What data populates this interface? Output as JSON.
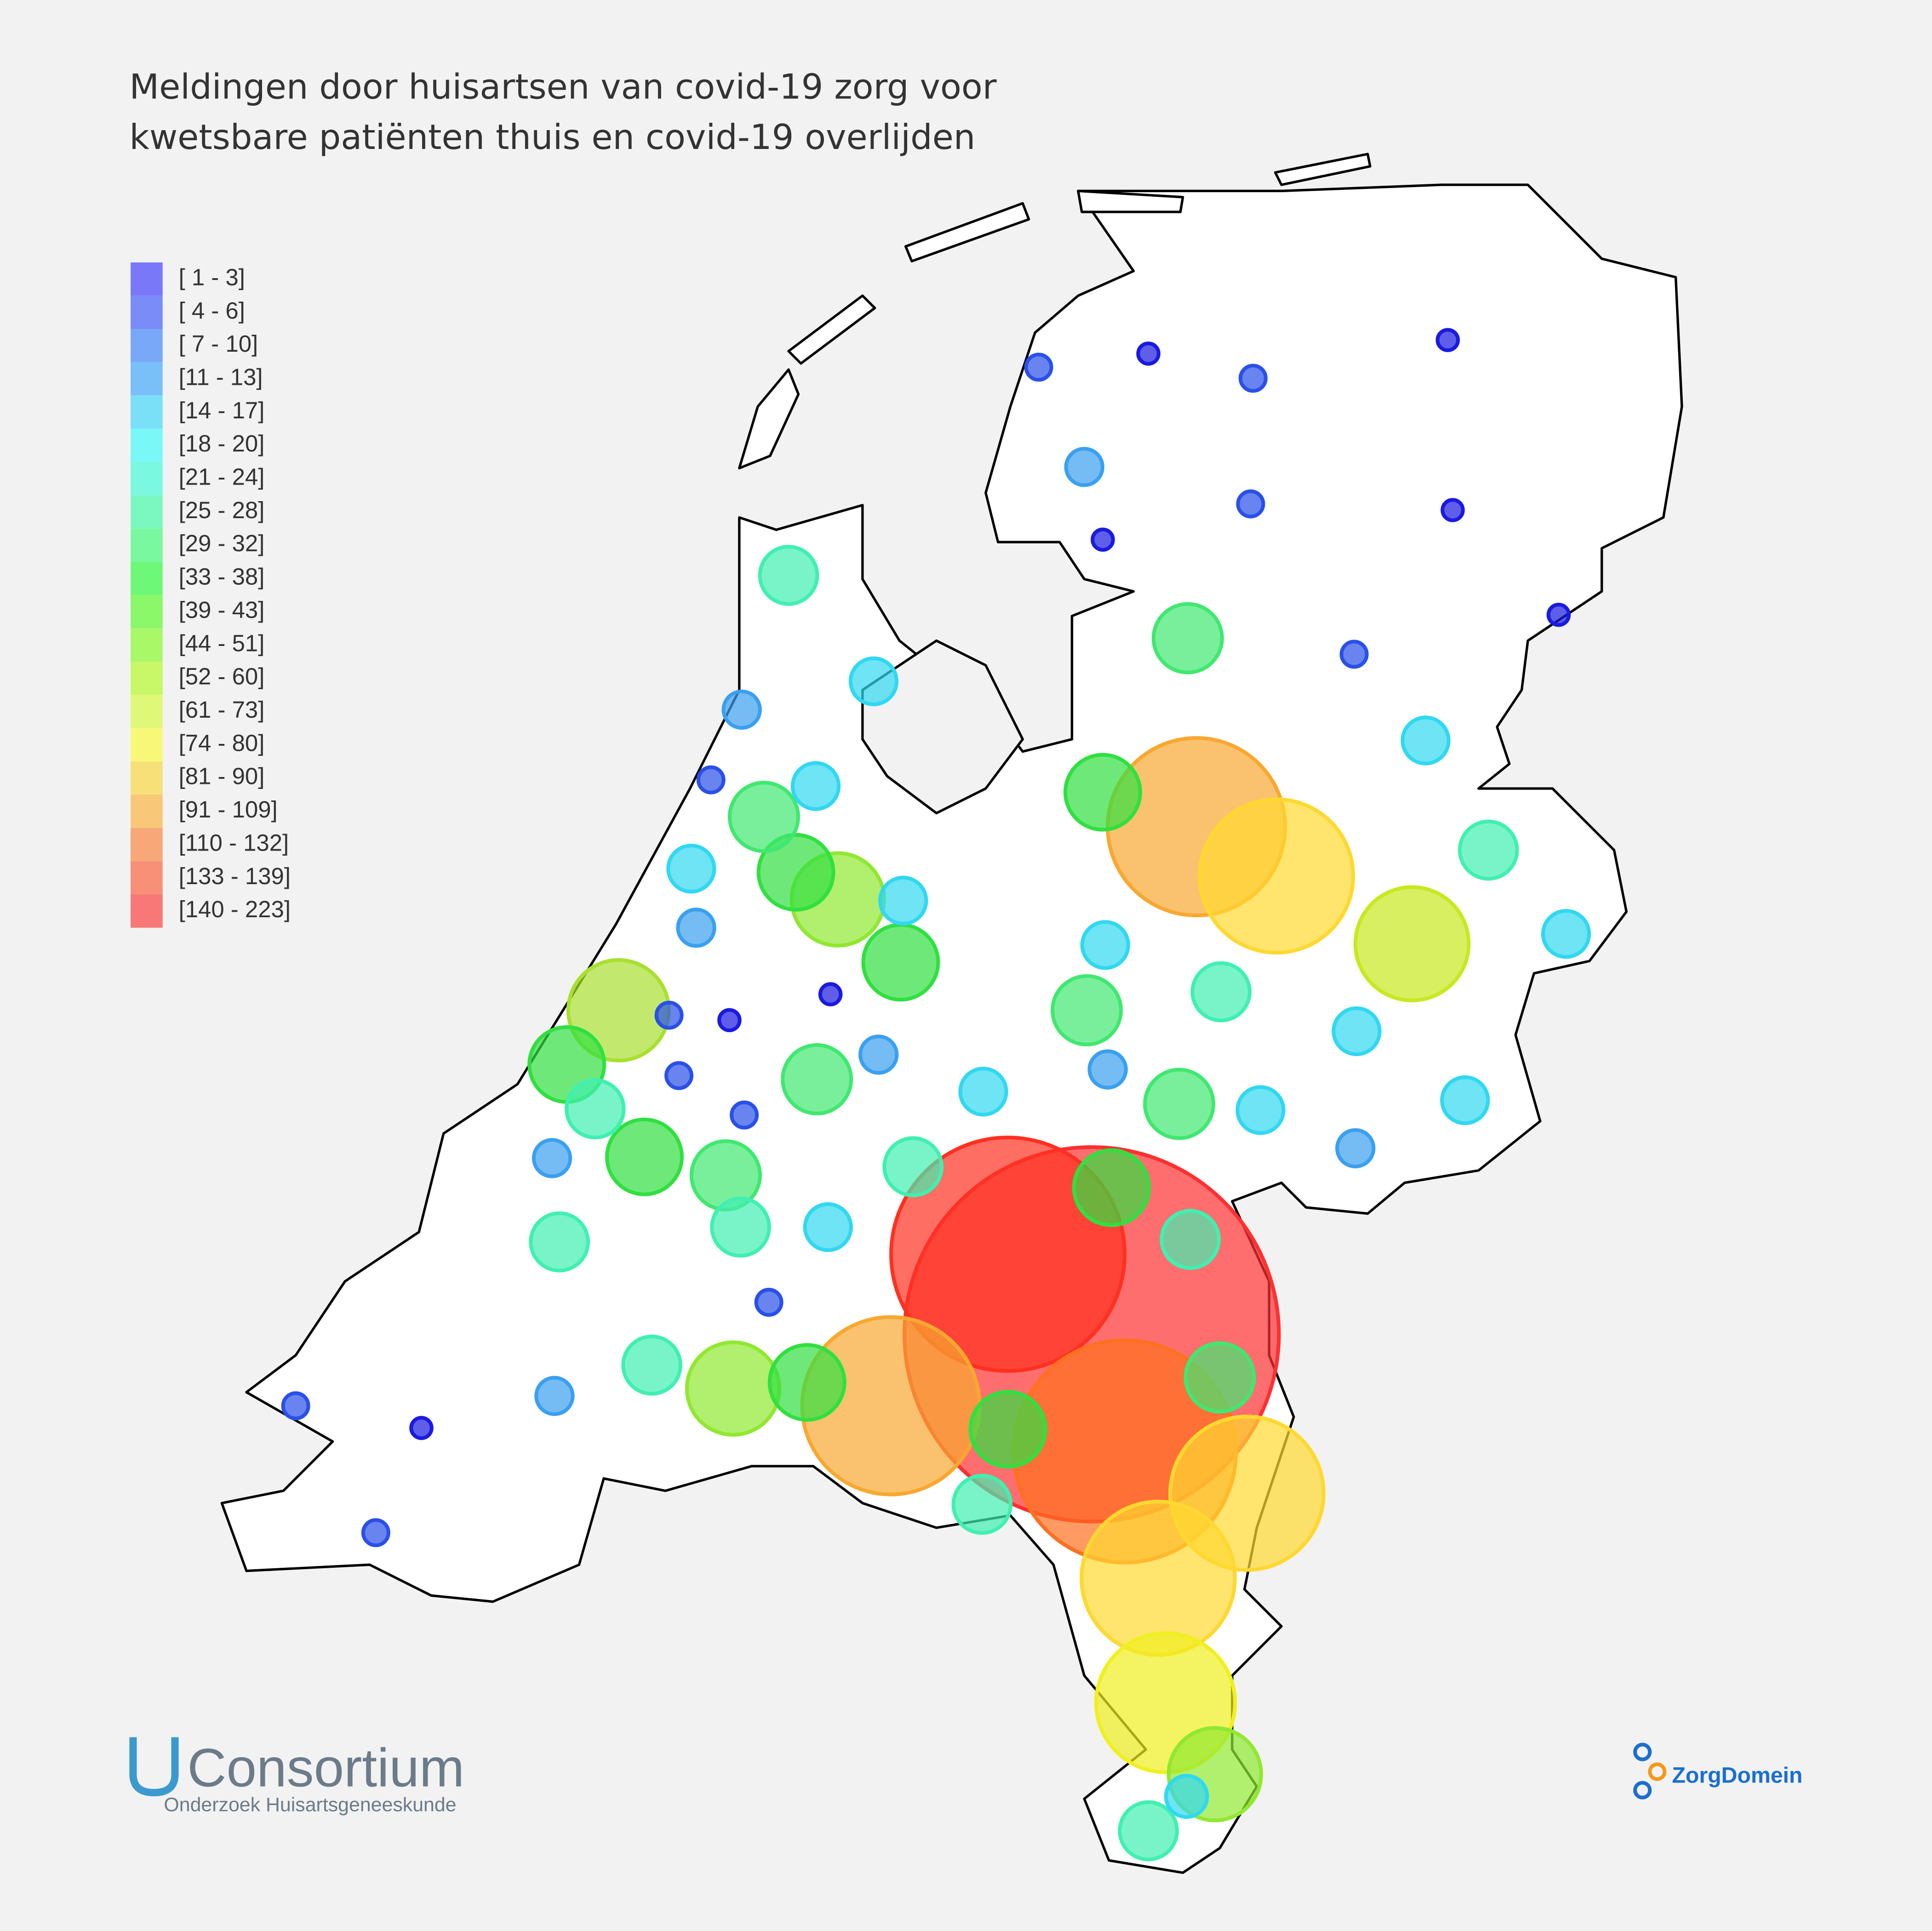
{
  "map": {
    "title": [
      "Meldingen door huisartsen van covid-19 zorg voor",
      "kwetsbare patiënten thuis en covid-19 overlijden"
    ],
    "legend": [
      {
        "label": "[ 1 - 3]",
        "color": "#7878f8"
      },
      {
        "label": "[ 4 - 6]",
        "color": "#7a8cf8"
      },
      {
        "label": "[ 7 - 10]",
        "color": "#7aa8f8"
      },
      {
        "label": "[11 - 13]",
        "color": "#7ac0f8"
      },
      {
        "label": "[14 - 17]",
        "color": "#7ae0f8"
      },
      {
        "label": "[18 - 20]",
        "color": "#7af8f8"
      },
      {
        "label": "[21 - 24]",
        "color": "#7af8e0"
      },
      {
        "label": "[25 - 28]",
        "color": "#7af8c0"
      },
      {
        "label": "[29 - 32]",
        "color": "#7af8a0"
      },
      {
        "label": "[33 - 38]",
        "color": "#6ef878"
      },
      {
        "label": "[39 - 43]",
        "color": "#8af868"
      },
      {
        "label": "[44 - 51]",
        "color": "#a8f868"
      },
      {
        "label": "[52 - 60]",
        "color": "#c8f868"
      },
      {
        "label": "[61 - 73]",
        "color": "#e0f878"
      },
      {
        "label": "[74 - 80]",
        "color": "#f8f878"
      },
      {
        "label": "[81 - 90]",
        "color": "#f8e078"
      },
      {
        "label": "[91 - 109]",
        "color": "#f8c878"
      },
      {
        "label": "[110 - 132]",
        "color": "#f8a878"
      },
      {
        "label": "[133 - 139]",
        "color": "#f89078"
      },
      {
        "label": "[140 - 223]",
        "color": "#f87878"
      }
    ],
    "markers": [
      {
        "value": 223,
        "color": "#ff3030"
      },
      {
        "value": 135,
        "color": "#ff3020"
      },
      {
        "value": 128,
        "color": "#ff7020"
      },
      {
        "value": 100,
        "color": "#f8a830"
      },
      {
        "value": 100,
        "color": "#f8a830"
      },
      {
        "value": 85,
        "color": "#ffd830"
      },
      {
        "value": 85,
        "color": "#ffd830"
      },
      {
        "value": 85,
        "color": "#ffd830"
      },
      {
        "value": 76,
        "color": "#f0f020"
      },
      {
        "value": 60,
        "color": "#c8e820"
      },
      {
        "value": 52,
        "color": "#a8e030"
      },
      {
        "value": 47,
        "color": "#90e830"
      },
      {
        "value": 47,
        "color": "#90e830"
      },
      {
        "value": 47,
        "color": "#90e830"
      },
      {
        "value": 36,
        "color": "#30e040"
      },
      {
        "value": 36,
        "color": "#30e040"
      },
      {
        "value": 36,
        "color": "#30e040"
      },
      {
        "value": 36,
        "color": "#30e040"
      },
      {
        "value": 36,
        "color": "#30e040"
      },
      {
        "value": 36,
        "color": "#30e040"
      },
      {
        "value": 36,
        "color": "#30e040"
      },
      {
        "value": 36,
        "color": "#30e040"
      },
      {
        "value": 32,
        "color": "#40e870"
      },
      {
        "value": 32,
        "color": "#40e870"
      },
      {
        "value": 32,
        "color": "#40e870"
      },
      {
        "value": 32,
        "color": "#40e870"
      },
      {
        "value": 32,
        "color": "#40e870"
      },
      {
        "value": 32,
        "color": "#40e870"
      },
      {
        "value": 32,
        "color": "#40e870"
      },
      {
        "value": 25,
        "color": "#40f0b0"
      },
      {
        "value": 25,
        "color": "#40f0b0"
      },
      {
        "value": 25,
        "color": "#40f0b0"
      },
      {
        "value": 25,
        "color": "#40f0b0"
      },
      {
        "value": 25,
        "color": "#40f0b0"
      },
      {
        "value": 25,
        "color": "#40f0b0"
      },
      {
        "value": 25,
        "color": "#40f0b0"
      },
      {
        "value": 25,
        "color": "#40f0b0"
      },
      {
        "value": 25,
        "color": "#40f0b0"
      },
      {
        "value": 25,
        "color": "#40f0b0"
      },
      {
        "value": 25,
        "color": "#40f0b0"
      },
      {
        "value": 18,
        "color": "#30d8f0"
      },
      {
        "value": 18,
        "color": "#30d8f0"
      },
      {
        "value": 18,
        "color": "#30d8f0"
      },
      {
        "value": 18,
        "color": "#30d8f0"
      },
      {
        "value": 18,
        "color": "#30d8f0"
      },
      {
        "value": 18,
        "color": "#30d8f0"
      },
      {
        "value": 18,
        "color": "#30d8f0"
      },
      {
        "value": 18,
        "color": "#30d8f0"
      },
      {
        "value": 18,
        "color": "#30d8f0"
      },
      {
        "value": 18,
        "color": "#30d8f0"
      },
      {
        "value": 18,
        "color": "#30d8f0"
      },
      {
        "value": 18,
        "color": "#30d8f0"
      },
      {
        "value": 15,
        "color": "#30d8f0"
      },
      {
        "value": 12,
        "color": "#3aa0f0"
      },
      {
        "value": 12,
        "color": "#3aa0f0"
      },
      {
        "value": 12,
        "color": "#3aa0f0"
      },
      {
        "value": 12,
        "color": "#3aa0f0"
      },
      {
        "value": 12,
        "color": "#3aa0f0"
      },
      {
        "value": 12,
        "color": "#3aa0f0"
      },
      {
        "value": 12,
        "color": "#3aa0f0"
      },
      {
        "value": 12,
        "color": "#3aa0f0"
      },
      {
        "value": 5,
        "color": "#2a50e8"
      },
      {
        "value": 5,
        "color": "#2a50e8"
      },
      {
        "value": 5,
        "color": "#2a50e8"
      },
      {
        "value": 5,
        "color": "#2a50e8"
      },
      {
        "value": 5,
        "color": "#2a50e8"
      },
      {
        "value": 5,
        "color": "#2a50e8"
      },
      {
        "value": 5,
        "color": "#2a50e8"
      },
      {
        "value": 5,
        "color": "#2a50e8"
      },
      {
        "value": 5,
        "color": "#2a50e8"
      },
      {
        "value": 5,
        "color": "#2a50e8"
      },
      {
        "value": 5,
        "color": "#2a50e8"
      },
      {
        "value": 2,
        "color": "#1a1ae0"
      },
      {
        "value": 2,
        "color": "#1a1ae0"
      },
      {
        "value": 2,
        "color": "#1a1ae0"
      },
      {
        "value": 2,
        "color": "#1a1ae0"
      },
      {
        "value": 2,
        "color": "#1a1ae0"
      },
      {
        "value": 2,
        "color": "#1a1ae0"
      },
      {
        "value": 2,
        "color": "#1a1ae0"
      },
      {
        "value": 2,
        "color": "#1a1ae0"
      }
    ],
    "logos": {
      "consortium": "Consortium",
      "consortium_subtitle": "Onderzoek Huisartsgeneeskunde",
      "zorgdomein": "ZorgDomein"
    }
  }
}
